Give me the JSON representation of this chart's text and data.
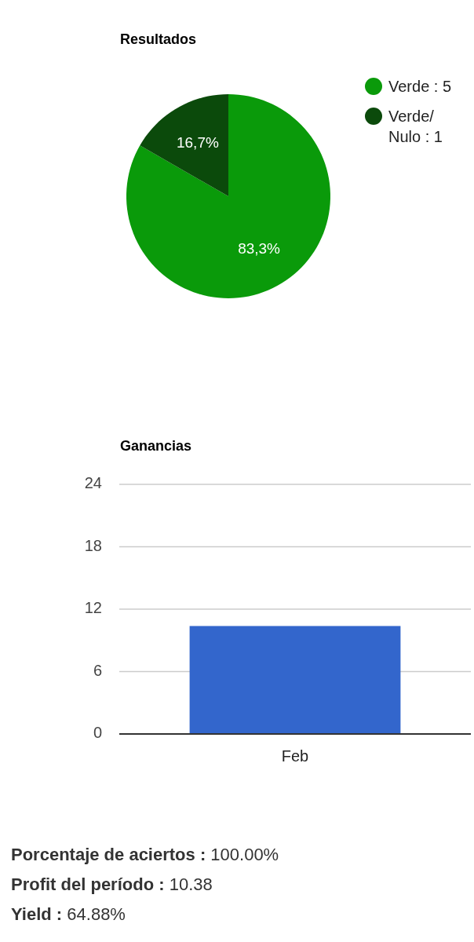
{
  "chart_data": [
    {
      "type": "pie",
      "title": "Resultados",
      "categories": [
        "Verde : 5",
        "Verde/\nNulo : 1"
      ],
      "values": [
        83.3,
        16.7
      ],
      "colors": [
        "#0a9a0a",
        "#0b4a0b"
      ],
      "value_labels": [
        "83,3%",
        "16,7%"
      ],
      "legend": "right"
    },
    {
      "type": "bar",
      "title": "Ganancias",
      "categories": [
        "Feb"
      ],
      "values": [
        10.38
      ],
      "color": "#3366cc",
      "ylim": [
        0,
        24
      ],
      "yticks": [
        0,
        6,
        12,
        18,
        24
      ],
      "grid": "y"
    },
    {
      "type": "other",
      "annotations": [
        "Porcentaje de aciertos : 100.00%",
        "Profit del período : 10.38",
        "Yield : 64.88%"
      ]
    }
  ]
}
